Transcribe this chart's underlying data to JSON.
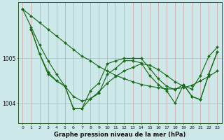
{
  "title": "Graphe pression niveau de la mer (hPa)",
  "bg_color": "#cce8e8",
  "line_color": "#1a6b1a",
  "marker_color": "#1a6b1a",
  "xlim": [
    -0.5,
    23.5
  ],
  "ylim": [
    1003.55,
    1006.25
  ],
  "yticks": [
    1004,
    1005
  ],
  "ytick_labels": [
    "1004",
    "1005"
  ],
  "xtick_labels": [
    "0",
    "1",
    "2",
    "3",
    "4",
    "5",
    "6",
    "7",
    "8",
    "9",
    "10",
    "11",
    "12",
    "13",
    "14",
    "15",
    "16",
    "17",
    "18",
    "19",
    "20",
    "21",
    "22",
    "23"
  ],
  "series1_x": [
    0,
    1,
    2,
    3,
    4,
    5,
    6,
    7,
    8,
    9,
    10,
    11,
    12,
    13,
    14,
    15,
    16,
    17,
    18,
    19,
    20,
    21,
    22,
    23
  ],
  "series1_y": [
    1006.1,
    1005.95,
    1005.8,
    1005.65,
    1005.5,
    1005.35,
    1005.2,
    1005.05,
    1004.95,
    1004.82,
    1004.72,
    1004.62,
    1004.55,
    1004.48,
    1004.42,
    1004.38,
    1004.35,
    1004.32,
    1004.32,
    1004.35,
    1004.4,
    1004.5,
    1004.6,
    1004.72
  ],
  "series2_x": [
    0,
    1,
    2,
    3,
    4,
    5,
    6,
    7,
    8,
    9,
    10,
    11,
    12,
    13,
    14,
    15,
    16,
    17,
    18,
    19,
    20,
    21,
    22,
    23
  ],
  "series2_y": [
    1006.1,
    1005.7,
    1005.3,
    1004.95,
    1004.65,
    1004.38,
    1004.15,
    1004.05,
    1004.1,
    1004.25,
    1004.45,
    1004.6,
    1004.72,
    1004.8,
    1004.88,
    1004.85,
    1004.75,
    1004.62,
    1004.48,
    1004.38,
    1004.32,
    1004.62,
    1005.05,
    1005.25
  ],
  "series3_x": [
    1,
    2,
    3,
    4,
    5,
    6,
    7,
    8,
    9,
    10,
    11,
    12,
    13,
    14,
    15,
    16,
    17,
    18,
    19,
    20,
    21,
    22,
    23
  ],
  "series3_y": [
    1005.65,
    1005.1,
    1004.7,
    1004.5,
    1004.38,
    1003.88,
    1003.88,
    1004.28,
    1004.45,
    1004.88,
    1004.95,
    1005.0,
    1005.0,
    1005.0,
    1004.78,
    1004.55,
    1004.38,
    1004.3,
    1004.42,
    1004.15,
    1004.08,
    1004.65,
    1005.15
  ],
  "series4_x": [
    1,
    2,
    3,
    4,
    5,
    6,
    7,
    8,
    9,
    10,
    11,
    12,
    13,
    14,
    15,
    16,
    17,
    18,
    19,
    20,
    21,
    22,
    23
  ],
  "series4_y": [
    1005.65,
    1005.1,
    1004.65,
    1004.5,
    1004.38,
    1003.88,
    1003.88,
    1004.1,
    1004.22,
    1004.65,
    1004.78,
    1004.95,
    1004.95,
    1004.9,
    1004.62,
    1004.42,
    1004.28,
    1004.0,
    1004.42,
    1004.15,
    1004.08,
    1004.65,
    1005.15
  ]
}
